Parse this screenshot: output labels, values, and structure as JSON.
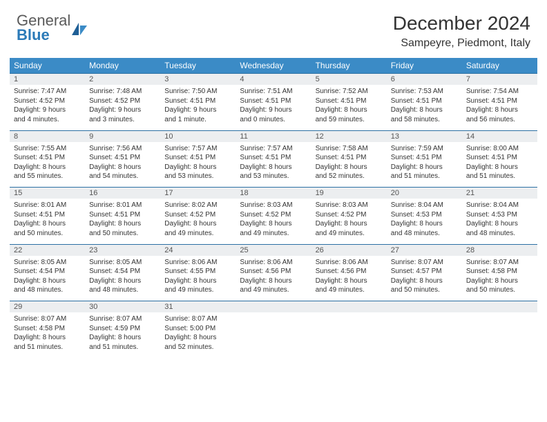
{
  "logo": {
    "general": "General",
    "blue": "Blue"
  },
  "header": {
    "title": "December 2024",
    "location": "Sampeyre, Piedmont, Italy"
  },
  "colors": {
    "header_bg": "#3b8bc6",
    "daynum_bg": "#eceef0",
    "rule": "#2b6fa3",
    "text": "#333333",
    "logo_gray": "#5a5a5a",
    "logo_blue": "#2b7ab8"
  },
  "weekdays": [
    "Sunday",
    "Monday",
    "Tuesday",
    "Wednesday",
    "Thursday",
    "Friday",
    "Saturday"
  ],
  "weeks": [
    {
      "days": [
        {
          "num": "1",
          "sunrise": "Sunrise: 7:47 AM",
          "sunset": "Sunset: 4:52 PM",
          "day1": "Daylight: 9 hours",
          "day2": "and 4 minutes."
        },
        {
          "num": "2",
          "sunrise": "Sunrise: 7:48 AM",
          "sunset": "Sunset: 4:52 PM",
          "day1": "Daylight: 9 hours",
          "day2": "and 3 minutes."
        },
        {
          "num": "3",
          "sunrise": "Sunrise: 7:50 AM",
          "sunset": "Sunset: 4:51 PM",
          "day1": "Daylight: 9 hours",
          "day2": "and 1 minute."
        },
        {
          "num": "4",
          "sunrise": "Sunrise: 7:51 AM",
          "sunset": "Sunset: 4:51 PM",
          "day1": "Daylight: 9 hours",
          "day2": "and 0 minutes."
        },
        {
          "num": "5",
          "sunrise": "Sunrise: 7:52 AM",
          "sunset": "Sunset: 4:51 PM",
          "day1": "Daylight: 8 hours",
          "day2": "and 59 minutes."
        },
        {
          "num": "6",
          "sunrise": "Sunrise: 7:53 AM",
          "sunset": "Sunset: 4:51 PM",
          "day1": "Daylight: 8 hours",
          "day2": "and 58 minutes."
        },
        {
          "num": "7",
          "sunrise": "Sunrise: 7:54 AM",
          "sunset": "Sunset: 4:51 PM",
          "day1": "Daylight: 8 hours",
          "day2": "and 56 minutes."
        }
      ]
    },
    {
      "days": [
        {
          "num": "8",
          "sunrise": "Sunrise: 7:55 AM",
          "sunset": "Sunset: 4:51 PM",
          "day1": "Daylight: 8 hours",
          "day2": "and 55 minutes."
        },
        {
          "num": "9",
          "sunrise": "Sunrise: 7:56 AM",
          "sunset": "Sunset: 4:51 PM",
          "day1": "Daylight: 8 hours",
          "day2": "and 54 minutes."
        },
        {
          "num": "10",
          "sunrise": "Sunrise: 7:57 AM",
          "sunset": "Sunset: 4:51 PM",
          "day1": "Daylight: 8 hours",
          "day2": "and 53 minutes."
        },
        {
          "num": "11",
          "sunrise": "Sunrise: 7:57 AM",
          "sunset": "Sunset: 4:51 PM",
          "day1": "Daylight: 8 hours",
          "day2": "and 53 minutes."
        },
        {
          "num": "12",
          "sunrise": "Sunrise: 7:58 AM",
          "sunset": "Sunset: 4:51 PM",
          "day1": "Daylight: 8 hours",
          "day2": "and 52 minutes."
        },
        {
          "num": "13",
          "sunrise": "Sunrise: 7:59 AM",
          "sunset": "Sunset: 4:51 PM",
          "day1": "Daylight: 8 hours",
          "day2": "and 51 minutes."
        },
        {
          "num": "14",
          "sunrise": "Sunrise: 8:00 AM",
          "sunset": "Sunset: 4:51 PM",
          "day1": "Daylight: 8 hours",
          "day2": "and 51 minutes."
        }
      ]
    },
    {
      "days": [
        {
          "num": "15",
          "sunrise": "Sunrise: 8:01 AM",
          "sunset": "Sunset: 4:51 PM",
          "day1": "Daylight: 8 hours",
          "day2": "and 50 minutes."
        },
        {
          "num": "16",
          "sunrise": "Sunrise: 8:01 AM",
          "sunset": "Sunset: 4:51 PM",
          "day1": "Daylight: 8 hours",
          "day2": "and 50 minutes."
        },
        {
          "num": "17",
          "sunrise": "Sunrise: 8:02 AM",
          "sunset": "Sunset: 4:52 PM",
          "day1": "Daylight: 8 hours",
          "day2": "and 49 minutes."
        },
        {
          "num": "18",
          "sunrise": "Sunrise: 8:03 AM",
          "sunset": "Sunset: 4:52 PM",
          "day1": "Daylight: 8 hours",
          "day2": "and 49 minutes."
        },
        {
          "num": "19",
          "sunrise": "Sunrise: 8:03 AM",
          "sunset": "Sunset: 4:52 PM",
          "day1": "Daylight: 8 hours",
          "day2": "and 49 minutes."
        },
        {
          "num": "20",
          "sunrise": "Sunrise: 8:04 AM",
          "sunset": "Sunset: 4:53 PM",
          "day1": "Daylight: 8 hours",
          "day2": "and 48 minutes."
        },
        {
          "num": "21",
          "sunrise": "Sunrise: 8:04 AM",
          "sunset": "Sunset: 4:53 PM",
          "day1": "Daylight: 8 hours",
          "day2": "and 48 minutes."
        }
      ]
    },
    {
      "days": [
        {
          "num": "22",
          "sunrise": "Sunrise: 8:05 AM",
          "sunset": "Sunset: 4:54 PM",
          "day1": "Daylight: 8 hours",
          "day2": "and 48 minutes."
        },
        {
          "num": "23",
          "sunrise": "Sunrise: 8:05 AM",
          "sunset": "Sunset: 4:54 PM",
          "day1": "Daylight: 8 hours",
          "day2": "and 48 minutes."
        },
        {
          "num": "24",
          "sunrise": "Sunrise: 8:06 AM",
          "sunset": "Sunset: 4:55 PM",
          "day1": "Daylight: 8 hours",
          "day2": "and 49 minutes."
        },
        {
          "num": "25",
          "sunrise": "Sunrise: 8:06 AM",
          "sunset": "Sunset: 4:56 PM",
          "day1": "Daylight: 8 hours",
          "day2": "and 49 minutes."
        },
        {
          "num": "26",
          "sunrise": "Sunrise: 8:06 AM",
          "sunset": "Sunset: 4:56 PM",
          "day1": "Daylight: 8 hours",
          "day2": "and 49 minutes."
        },
        {
          "num": "27",
          "sunrise": "Sunrise: 8:07 AM",
          "sunset": "Sunset: 4:57 PM",
          "day1": "Daylight: 8 hours",
          "day2": "and 50 minutes."
        },
        {
          "num": "28",
          "sunrise": "Sunrise: 8:07 AM",
          "sunset": "Sunset: 4:58 PM",
          "day1": "Daylight: 8 hours",
          "day2": "and 50 minutes."
        }
      ]
    },
    {
      "days": [
        {
          "num": "29",
          "sunrise": "Sunrise: 8:07 AM",
          "sunset": "Sunset: 4:58 PM",
          "day1": "Daylight: 8 hours",
          "day2": "and 51 minutes."
        },
        {
          "num": "30",
          "sunrise": "Sunrise: 8:07 AM",
          "sunset": "Sunset: 4:59 PM",
          "day1": "Daylight: 8 hours",
          "day2": "and 51 minutes."
        },
        {
          "num": "31",
          "sunrise": "Sunrise: 8:07 AM",
          "sunset": "Sunset: 5:00 PM",
          "day1": "Daylight: 8 hours",
          "day2": "and 52 minutes."
        },
        {
          "num": "",
          "sunrise": "",
          "sunset": "",
          "day1": "",
          "day2": ""
        },
        {
          "num": "",
          "sunrise": "",
          "sunset": "",
          "day1": "",
          "day2": ""
        },
        {
          "num": "",
          "sunrise": "",
          "sunset": "",
          "day1": "",
          "day2": ""
        },
        {
          "num": "",
          "sunrise": "",
          "sunset": "",
          "day1": "",
          "day2": ""
        }
      ]
    }
  ]
}
